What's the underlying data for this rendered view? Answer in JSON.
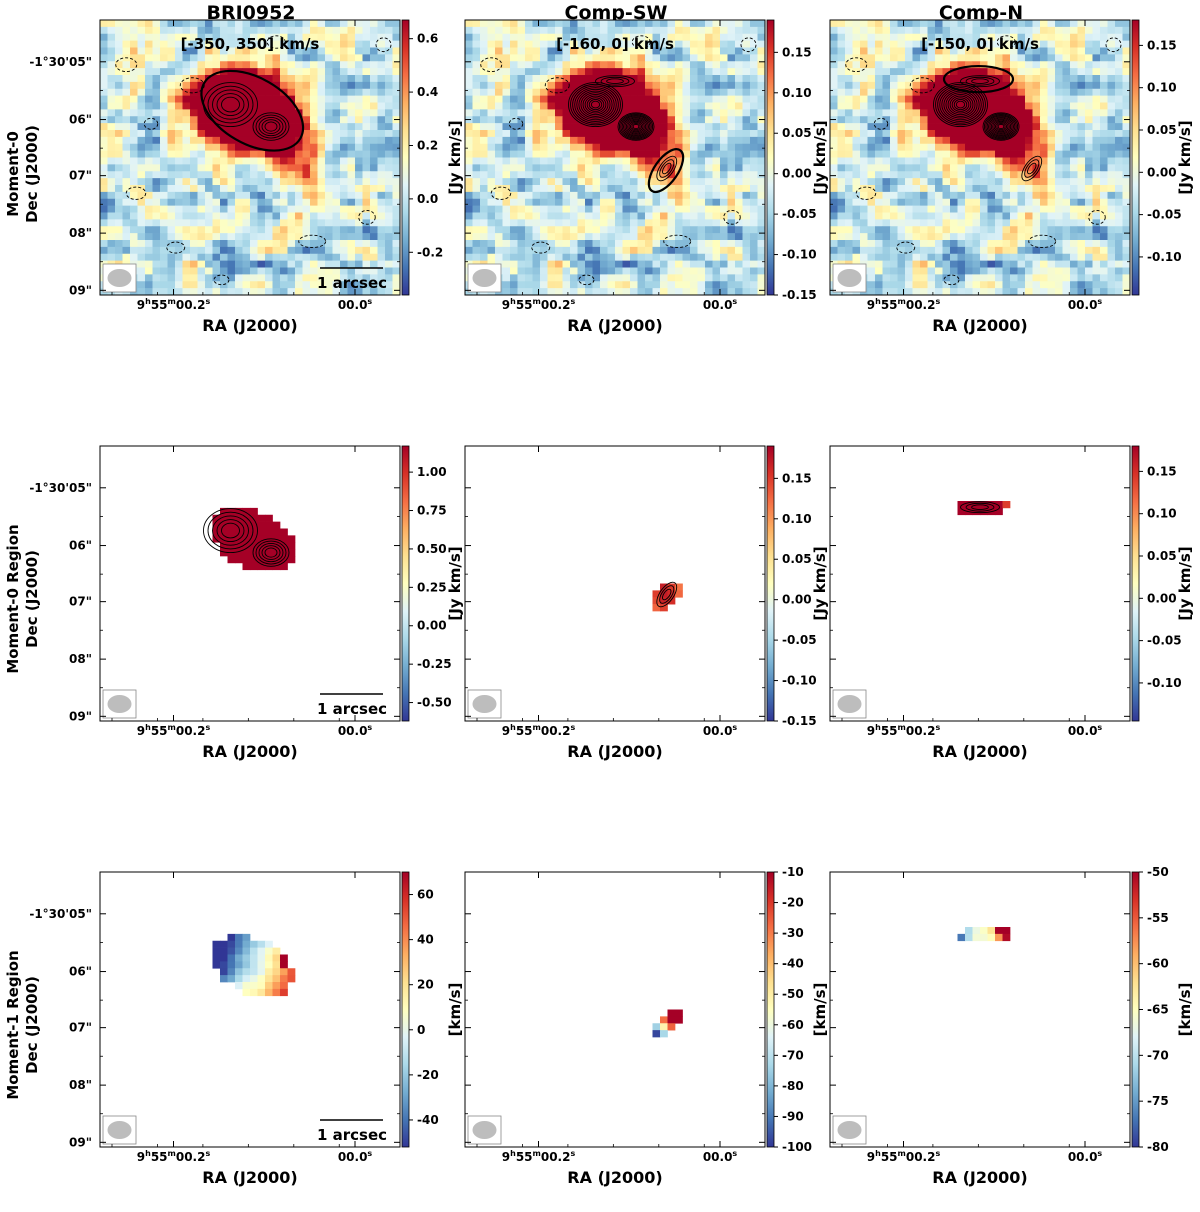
{
  "figure": {
    "columns": [
      {
        "title": "BRI0952",
        "velocity_range": "[-350, 350] km/s"
      },
      {
        "title": "Comp-SW",
        "velocity_range": "[-160, 0] km/s"
      },
      {
        "title": "Comp-N",
        "velocity_range": "[-150, 0] km/s"
      }
    ],
    "rows": [
      {
        "label_line1": "Moment-0",
        "label_line2": "Dec (J2000)"
      },
      {
        "label_line1": "Moment-0 Region",
        "label_line2": "Dec (J2000)"
      },
      {
        "label_line1": "Moment-1 Region",
        "label_line2": "Dec (J2000)"
      }
    ],
    "xlabel": "RA (J2000)",
    "x_ticks": [
      {
        "h": "9",
        "m": "55",
        "s": "00.2",
        "short": false,
        "suffix": "s"
      },
      {
        "h": "",
        "m": "",
        "s": "00.0",
        "short": true,
        "suffix": "s"
      }
    ],
    "y_ticks": [
      "-1°30'05\"",
      "06\"",
      "07\"",
      "08\"",
      "09\""
    ],
    "scalebar_label": "1 arcsec",
    "colormap": [
      "#313695",
      "#4575b4",
      "#74add1",
      "#abd9e9",
      "#e0f3f8",
      "#ffffbf",
      "#fee090",
      "#fdae61",
      "#f46d43",
      "#d73027",
      "#a50026"
    ]
  },
  "chart_data": [
    {
      "type": "heatmap",
      "row": 0,
      "col": 0,
      "title": "BRI0952 Moment-0",
      "map": "mom0",
      "aperture": "main",
      "colorbar": {
        "unit": "[Jy km/s]",
        "vmin": -0.36,
        "vmax": 0.67,
        "ticks": [
          "0.6",
          "0.4",
          "0.2",
          "0.0",
          "-0.2"
        ],
        "tick_values": [
          0.6,
          0.4,
          0.2,
          0.0,
          -0.2
        ]
      },
      "xlabel": "RA (J2000)",
      "ylabel": "Dec (J2000)"
    },
    {
      "type": "heatmap",
      "row": 0,
      "col": 1,
      "title": "Comp-SW Moment-0",
      "map": "mom0",
      "aperture": "sw",
      "colorbar": {
        "unit": "[Jy km/s]",
        "vmin": -0.15,
        "vmax": 0.19,
        "ticks": [
          "0.15",
          "0.10",
          "0.05",
          "0.00",
          "-0.05",
          "-0.10",
          "-0.15"
        ],
        "tick_values": [
          0.15,
          0.1,
          0.05,
          0.0,
          -0.05,
          -0.1,
          -0.15
        ]
      },
      "xlabel": "RA (J2000)",
      "ylabel": "Dec (J2000)"
    },
    {
      "type": "heatmap",
      "row": 0,
      "col": 2,
      "title": "Comp-N Moment-0",
      "map": "mom0",
      "aperture": "n",
      "colorbar": {
        "unit": "[Jy km/s]",
        "vmin": -0.145,
        "vmax": 0.18,
        "ticks": [
          "0.15",
          "0.10",
          "0.05",
          "0.00",
          "-0.05",
          "-0.10"
        ],
        "tick_values": [
          0.15,
          0.1,
          0.05,
          0.0,
          -0.05,
          -0.1
        ]
      },
      "xlabel": "RA (J2000)",
      "ylabel": "Dec (J2000)"
    },
    {
      "type": "heatmap",
      "row": 1,
      "col": 0,
      "title": "BRI0952 Moment-0 Region",
      "map": "region_main",
      "colorbar": {
        "unit": "[Jy km/s]",
        "vmin": -0.62,
        "vmax": 1.17,
        "ticks": [
          "1.00",
          "0.75",
          "0.50",
          "0.25",
          "0.00",
          "-0.25",
          "-0.50"
        ],
        "tick_values": [
          1.0,
          0.75,
          0.5,
          0.25,
          0.0,
          -0.25,
          -0.5
        ]
      },
      "xlabel": "RA (J2000)",
      "ylabel": "Dec (J2000)"
    },
    {
      "type": "heatmap",
      "row": 1,
      "col": 1,
      "title": "Comp-SW Moment-0 Region",
      "map": "region_sw",
      "colorbar": {
        "unit": "[Jy km/s]",
        "vmin": -0.15,
        "vmax": 0.19,
        "ticks": [
          "0.15",
          "0.10",
          "0.05",
          "0.00",
          "-0.05",
          "-0.10",
          "-0.15"
        ],
        "tick_values": [
          0.15,
          0.1,
          0.05,
          0.0,
          -0.05,
          -0.1,
          -0.15
        ]
      },
      "xlabel": "RA (J2000)",
      "ylabel": "Dec (J2000)"
    },
    {
      "type": "heatmap",
      "row": 1,
      "col": 2,
      "title": "Comp-N Moment-0 Region",
      "map": "region_n",
      "colorbar": {
        "unit": "[Jy km/s]",
        "vmin": -0.145,
        "vmax": 0.18,
        "ticks": [
          "0.15",
          "0.10",
          "0.05",
          "0.00",
          "-0.05",
          "-0.10"
        ],
        "tick_values": [
          0.15,
          0.1,
          0.05,
          0.0,
          -0.05,
          -0.1
        ]
      },
      "xlabel": "RA (J2000)",
      "ylabel": "Dec (J2000)"
    },
    {
      "type": "heatmap",
      "row": 2,
      "col": 0,
      "title": "BRI0952 Moment-1 Region",
      "map": "vel_main",
      "colorbar": {
        "unit": "[km/s]",
        "vmin": -52,
        "vmax": 70,
        "ticks": [
          "60",
          "40",
          "20",
          "0",
          "-20",
          "-40"
        ],
        "tick_values": [
          60,
          40,
          20,
          0,
          -20,
          -40
        ]
      },
      "xlabel": "RA (J2000)",
      "ylabel": "Dec (J2000)"
    },
    {
      "type": "heatmap",
      "row": 2,
      "col": 1,
      "title": "Comp-SW Moment-1 Region",
      "map": "vel_sw",
      "colorbar": {
        "unit": "[km/s]",
        "vmin": -100,
        "vmax": -10,
        "ticks": [
          "-10",
          "-20",
          "-30",
          "-40",
          "-50",
          "-60",
          "-70",
          "-80",
          "-90",
          "-100"
        ],
        "tick_values": [
          -10,
          -20,
          -30,
          -40,
          -50,
          -60,
          -70,
          -80,
          -90,
          -100
        ]
      },
      "xlabel": "RA (J2000)",
      "ylabel": "Dec (J2000)"
    },
    {
      "type": "heatmap",
      "row": 2,
      "col": 2,
      "title": "Comp-N Moment-1 Region",
      "map": "vel_n",
      "colorbar": {
        "unit": "[km/s]",
        "vmin": -80,
        "vmax": -50,
        "ticks": [
          "-50",
          "-55",
          "-60",
          "-65",
          "-70",
          "-75",
          "-80"
        ],
        "tick_values": [
          -50,
          -55,
          -60,
          -65,
          -70,
          -75,
          -80
        ]
      },
      "xlabel": "RA (J2000)",
      "ylabel": "Dec (J2000)"
    }
  ]
}
